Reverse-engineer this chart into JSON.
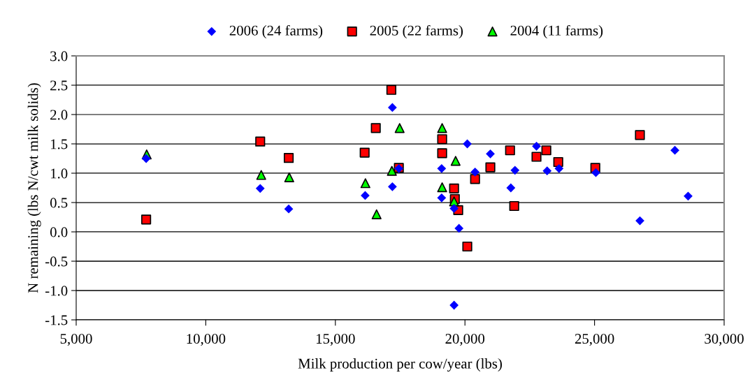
{
  "chart_data": {
    "type": "scatter",
    "xlabel": "Milk production per cow/year (lbs)",
    "ylabel": "N remaining (lbs N/cwt milk solids)",
    "xlim": [
      5000,
      30000
    ],
    "xticks": [
      {
        "value": 5000,
        "label": "5,000"
      },
      {
        "value": 10000,
        "label": "10,000"
      },
      {
        "value": 15000,
        "label": "15,000"
      },
      {
        "value": 20000,
        "label": "20,000"
      },
      {
        "value": 25000,
        "label": "25,000"
      },
      {
        "value": 30000,
        "label": "30,000"
      }
    ],
    "ylim": [
      -1.5,
      3.0
    ],
    "yticks": [
      {
        "value": -1.5,
        "label": "-1.5"
      },
      {
        "value": -1.0,
        "label": "-1.0"
      },
      {
        "value": -0.5,
        "label": "-0.5"
      },
      {
        "value": 0.0,
        "label": "0.0"
      },
      {
        "value": 0.5,
        "label": "0.5"
      },
      {
        "value": 1.0,
        "label": "1.0"
      },
      {
        "value": 1.5,
        "label": "1.5"
      },
      {
        "value": 2.0,
        "label": "2.0"
      },
      {
        "value": 2.5,
        "label": "2.5"
      },
      {
        "value": 3.0,
        "label": "3.0"
      }
    ],
    "grid": "y",
    "legend": "top",
    "series": [
      {
        "name": "2006 (24 farms)",
        "color": "#0000ff",
        "marker": "diamond",
        "x": [
          7700,
          12100,
          13200,
          16150,
          17200,
          17200,
          17450,
          19100,
          19100,
          19580,
          19770,
          19580,
          20090,
          20390,
          20980,
          21930,
          21770,
          22760,
          23170,
          23630,
          25050,
          26750,
          28100,
          28610
        ],
        "values": [
          1.25,
          0.74,
          0.39,
          0.62,
          2.12,
          0.77,
          1.08,
          1.08,
          0.58,
          0.4,
          0.06,
          -1.25,
          1.5,
          1.02,
          1.33,
          1.05,
          0.75,
          1.46,
          1.04,
          1.08,
          1.01,
          0.19,
          1.39,
          0.61
        ]
      },
      {
        "name": "2005 (22 farms)",
        "color": "#ff0000",
        "marker": "square",
        "x": [
          7700,
          12100,
          13200,
          16130,
          16560,
          17160,
          17450,
          19120,
          19120,
          19580,
          19610,
          19740,
          20090,
          20390,
          20980,
          21740,
          21900,
          22760,
          23140,
          23600,
          25030,
          26750
        ],
        "values": [
          0.21,
          1.54,
          1.26,
          1.35,
          1.77,
          2.42,
          1.09,
          1.58,
          1.34,
          0.74,
          0.56,
          0.37,
          -0.25,
          0.9,
          1.1,
          1.39,
          0.44,
          1.28,
          1.39,
          1.19,
          1.09,
          1.65
        ]
      },
      {
        "name": "2004 (11 farms)",
        "color": "#00ff00",
        "marker": "triangle",
        "x": [
          7720,
          12140,
          13220,
          16160,
          16590,
          17180,
          17480,
          19120,
          19120,
          19640,
          19580
        ],
        "values": [
          1.32,
          0.97,
          0.93,
          0.83,
          0.3,
          1.04,
          1.77,
          1.77,
          0.76,
          1.21,
          0.52
        ]
      }
    ]
  }
}
